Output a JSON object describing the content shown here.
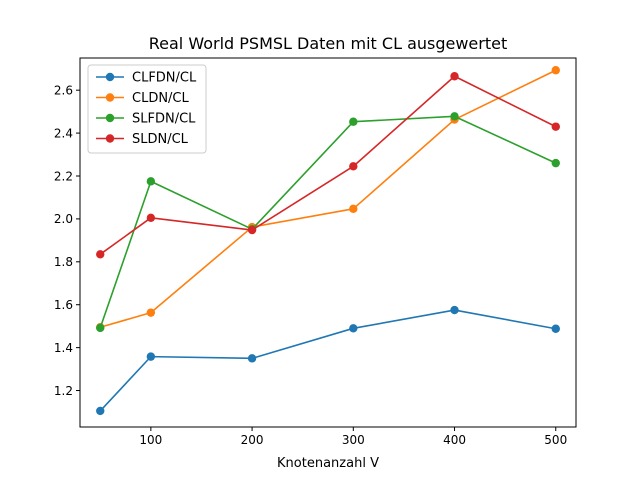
{
  "chart_data": {
    "type": "line",
    "title": "Real World PSMSL Daten mit CL ausgewertet",
    "xlabel": "Knotenanzahl V",
    "ylabel": "",
    "x": [
      50,
      100,
      200,
      300,
      400,
      500
    ],
    "xlim": [
      30,
      520
    ],
    "ylim": [
      1.03,
      2.75
    ],
    "xticks": [
      100,
      200,
      300,
      400,
      500
    ],
    "yticks": [
      1.2,
      1.4,
      1.6,
      1.8,
      2.0,
      2.2,
      2.4,
      2.6
    ],
    "xtick_labels": [
      "100",
      "200",
      "300",
      "400",
      "500"
    ],
    "ytick_labels": [
      "1.2",
      "1.4",
      "1.6",
      "1.8",
      "2.0",
      "2.2",
      "2.4",
      "2.6"
    ],
    "grid": false,
    "legend_position": "top-left",
    "series": [
      {
        "name": "CLFDN/CL",
        "color": "#1f77b4",
        "values": [
          1.105,
          1.358,
          1.35,
          1.49,
          1.575,
          1.488
        ]
      },
      {
        "name": "CLDN/CL",
        "color": "#ff7f0e",
        "values": [
          1.495,
          1.563,
          1.962,
          2.047,
          2.463,
          2.693
        ]
      },
      {
        "name": "SLFDN/CL",
        "color": "#2ca02c",
        "values": [
          1.492,
          2.175,
          1.952,
          2.453,
          2.478,
          2.26
        ]
      },
      {
        "name": "SLDN/CL",
        "color": "#d62728",
        "values": [
          1.835,
          2.005,
          1.948,
          2.245,
          2.665,
          2.43
        ]
      }
    ]
  }
}
